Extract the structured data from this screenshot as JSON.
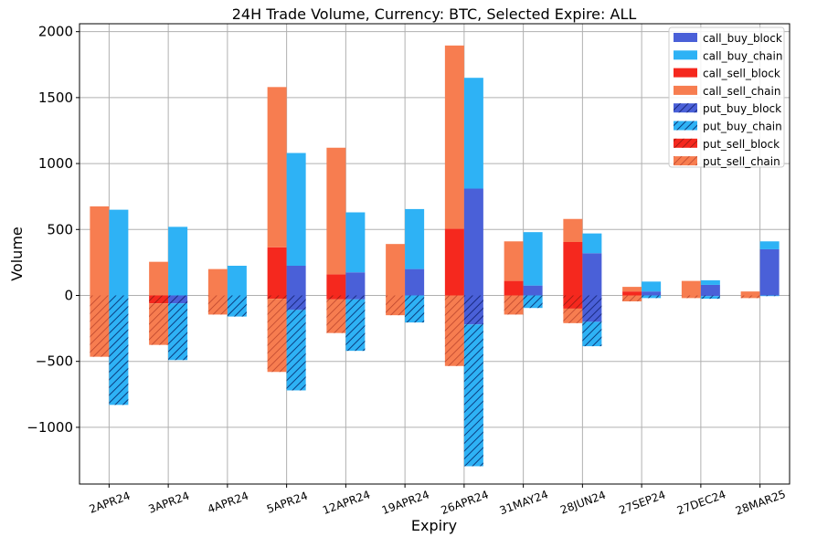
{
  "chart_data": {
    "type": "bar",
    "title": "24H Trade Volume, Currency: BTC, Selected Expire: ALL",
    "xlabel": "Expiry",
    "ylabel": "Volume",
    "ylim": [
      -1430,
      2060
    ],
    "yticks": [
      -1000,
      -500,
      0,
      500,
      1000,
      1500,
      2000
    ],
    "ytick_labels": [
      "−1000",
      "−500",
      "0",
      "500",
      "1000",
      "1500",
      "2000"
    ],
    "grid": true,
    "legend_position": "top-right",
    "categories": [
      "2APR24",
      "3APR24",
      "4APR24",
      "5APR24",
      "12APR24",
      "19APR24",
      "26APR24",
      "31MAY24",
      "28JUN24",
      "27SEP24",
      "27DEC24",
      "28MAR25"
    ],
    "colors": {
      "call_buy_block": "#4a60d8",
      "call_buy_chain": "#2eb2f5",
      "call_sell_block": "#f5281e",
      "call_sell_chain": "#f77d50",
      "put_buy_block": "#4a60d8",
      "put_buy_chain": "#2eb2f5",
      "put_sell_block": "#f5281e",
      "put_sell_chain": "#f77d50"
    },
    "series": [
      {
        "name": "call_buy_block",
        "side": "buy",
        "stack": "call",
        "hatch": false,
        "values": [
          0,
          0,
          0,
          225,
          175,
          200,
          810,
          75,
          320,
          30,
          80,
          350
        ]
      },
      {
        "name": "call_buy_chain",
        "side": "buy",
        "stack": "call",
        "hatch": false,
        "values": [
          650,
          520,
          225,
          855,
          455,
          455,
          840,
          405,
          150,
          75,
          35,
          60
        ]
      },
      {
        "name": "call_sell_block",
        "side": "sell",
        "stack": "call",
        "hatch": false,
        "values": [
          0,
          0,
          0,
          365,
          160,
          0,
          505,
          110,
          405,
          30,
          0,
          0
        ]
      },
      {
        "name": "call_sell_chain",
        "side": "sell",
        "stack": "call",
        "hatch": false,
        "values": [
          675,
          255,
          200,
          1215,
          960,
          390,
          1390,
          300,
          175,
          35,
          110,
          30
        ]
      },
      {
        "name": "put_buy_block",
        "side": "buy",
        "stack": "put",
        "hatch": true,
        "values": [
          0,
          -60,
          0,
          -110,
          -30,
          0,
          -220,
          0,
          -200,
          0,
          -5,
          0
        ]
      },
      {
        "name": "put_buy_chain",
        "side": "buy",
        "stack": "put",
        "hatch": true,
        "values": [
          -830,
          -430,
          -160,
          -610,
          -390,
          -205,
          -1075,
          -95,
          -185,
          -20,
          -20,
          -5
        ]
      },
      {
        "name": "put_sell_block",
        "side": "sell",
        "stack": "put",
        "hatch": true,
        "values": [
          0,
          -60,
          0,
          -25,
          -30,
          0,
          0,
          0,
          -100,
          0,
          0,
          0
        ]
      },
      {
        "name": "put_sell_chain",
        "side": "sell",
        "stack": "put",
        "hatch": true,
        "values": [
          -465,
          -315,
          -145,
          -555,
          -255,
          -150,
          -535,
          -145,
          -110,
          -45,
          -20,
          -20
        ]
      }
    ]
  }
}
